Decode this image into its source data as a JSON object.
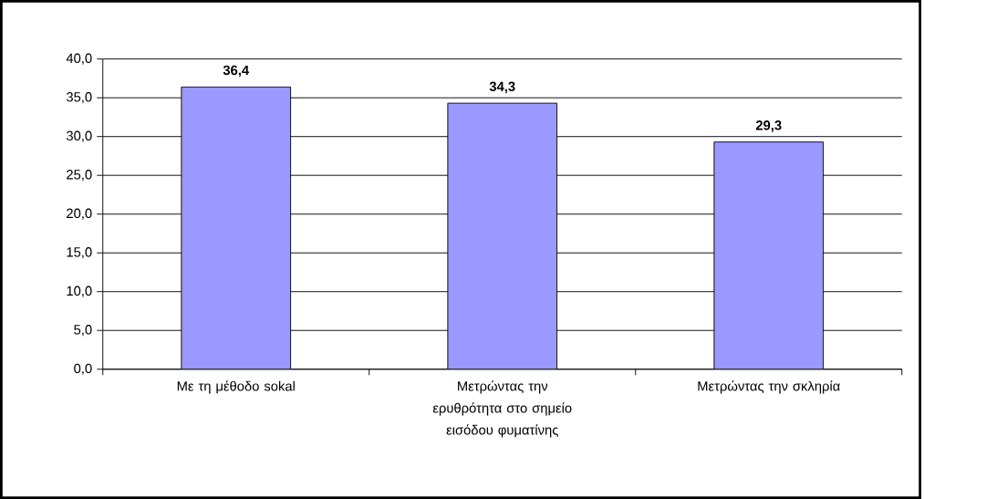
{
  "chart_data": {
    "type": "bar",
    "categories": [
      "Με τη μέθοδο sokal",
      "Μετρώντας την ερυθρότητα στο σημείο εισόδου φυματίνης",
      "Μετρώντας την σκληρία"
    ],
    "values": [
      36.4,
      34.3,
      29.3
    ],
    "value_labels": [
      "36,4",
      "34,3",
      "29,3"
    ],
    "color": "#9999ff",
    "ylim": [
      0,
      40
    ],
    "yticks": [
      {
        "value": 0,
        "label": "0,0"
      },
      {
        "value": 5,
        "label": "5,0"
      },
      {
        "value": 10,
        "label": "10,0"
      },
      {
        "value": 15,
        "label": "15,0"
      },
      {
        "value": 20,
        "label": "20,0"
      },
      {
        "value": 25,
        "label": "25,0"
      },
      {
        "value": 30,
        "label": "30,0"
      },
      {
        "value": 35,
        "label": "35,0"
      },
      {
        "value": 40,
        "label": "40,0"
      }
    ],
    "grid": "y"
  }
}
